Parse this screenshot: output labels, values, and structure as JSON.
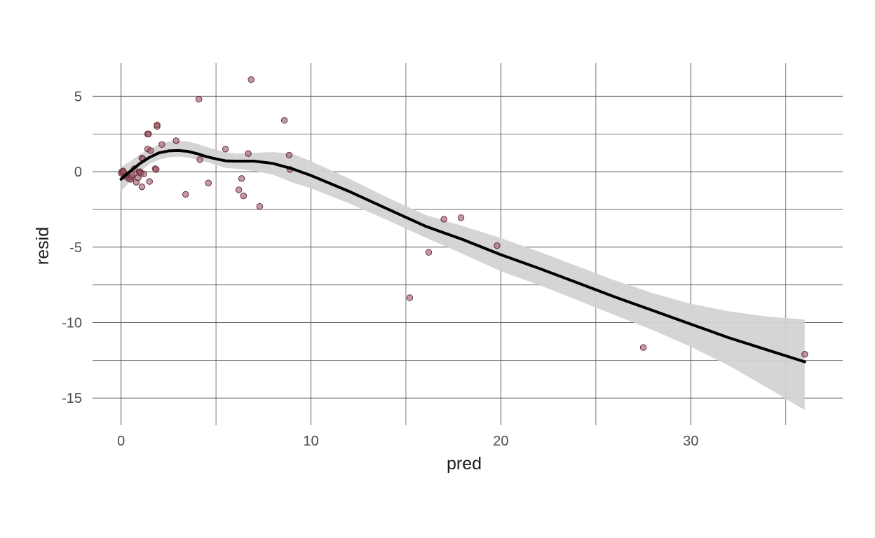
{
  "chart_data": {
    "type": "scatter",
    "title": "",
    "xlabel": "pred",
    "ylabel": "resid",
    "xlim": [
      -1.5,
      38
    ],
    "ylim": [
      -16.8,
      7.2
    ],
    "grid": "on",
    "legend": "none",
    "x_ticks": [
      0,
      10,
      20,
      30
    ],
    "x_tick_labels": [
      "0",
      "10",
      "20",
      "30"
    ],
    "x_minor_ticks": [
      5,
      15,
      25,
      35
    ],
    "y_ticks": [
      5,
      0,
      -5,
      -10,
      -15
    ],
    "y_tick_labels": [
      "5",
      "0",
      "-5",
      "-10",
      "-15"
    ],
    "y_minor_ticks": [
      2.5,
      -2.5,
      -7.5,
      -12.5
    ],
    "points": {
      "x": [
        0.02,
        0.05,
        0.1,
        0.15,
        0.2,
        0.3,
        0.4,
        0.5,
        0.55,
        0.6,
        0.7,
        0.8,
        0.9,
        0.95,
        1.0,
        1.05,
        1.1,
        1.1,
        1.15,
        1.2,
        1.4,
        1.4,
        1.45,
        1.5,
        1.55,
        1.8,
        1.85,
        1.9,
        1.9,
        2.15,
        2.9,
        3.4,
        4.1,
        4.15,
        4.6,
        5.5,
        6.2,
        6.35,
        6.45,
        6.7,
        6.85,
        7.3,
        8.6,
        8.85,
        8.9,
        15.2,
        16.2,
        17.0,
        17.9,
        19.8,
        27.5,
        36.0
      ],
      "y": [
        -0.1,
        0.0,
        0.05,
        -0.05,
        -0.3,
        -0.2,
        -0.45,
        -0.5,
        -0.35,
        -0.2,
        0.2,
        -0.7,
        -0.4,
        -0.05,
        0.0,
        -0.1,
        -1.0,
        0.9,
        0.85,
        -0.15,
        1.5,
        2.5,
        2.5,
        -0.65,
        1.4,
        0.2,
        0.15,
        3.0,
        3.1,
        1.8,
        2.05,
        -1.5,
        4.8,
        0.8,
        -0.75,
        1.5,
        -1.2,
        -0.45,
        -1.6,
        1.2,
        6.1,
        -2.3,
        3.4,
        1.1,
        0.15,
        -8.35,
        -5.35,
        -3.15,
        -3.05,
        -4.9,
        -11.65,
        -12.1
      ]
    },
    "smooth": {
      "x": [
        0.0,
        0.5,
        1.0,
        1.5,
        2.0,
        2.5,
        3.0,
        3.5,
        4.0,
        4.5,
        5.0,
        5.5,
        6.0,
        7.0,
        8.0,
        9.0,
        10.0,
        12.0,
        14.0,
        16.0,
        18.0,
        20.0,
        22.0,
        24.0,
        26.0,
        28.0,
        30.0,
        32.0,
        34.0,
        36.0
      ],
      "y": [
        -0.5,
        0.05,
        0.55,
        0.95,
        1.25,
        1.38,
        1.4,
        1.35,
        1.2,
        1.0,
        0.85,
        0.72,
        0.7,
        0.7,
        0.55,
        0.2,
        -0.25,
        -1.3,
        -2.45,
        -3.6,
        -4.5,
        -5.5,
        -6.4,
        -7.35,
        -8.3,
        -9.2,
        -10.1,
        -11.0,
        -11.8,
        -12.6
      ],
      "lower": [
        -1.3,
        -0.6,
        0.0,
        0.5,
        0.8,
        0.95,
        1.0,
        0.95,
        0.8,
        0.65,
        0.45,
        0.25,
        0.2,
        0.05,
        -0.2,
        -0.7,
        -1.1,
        -2.1,
        -3.2,
        -4.35,
        -5.45,
        -6.6,
        -7.5,
        -8.5,
        -9.5,
        -10.5,
        -11.6,
        -12.85,
        -14.3,
        -15.8
      ],
      "upper": [
        0.3,
        0.7,
        1.15,
        1.5,
        1.8,
        2.0,
        2.05,
        2.0,
        1.85,
        1.65,
        1.45,
        1.3,
        1.2,
        1.25,
        1.3,
        1.2,
        0.7,
        -0.45,
        -1.7,
        -2.85,
        -3.6,
        -4.4,
        -5.3,
        -6.25,
        -7.2,
        -8.05,
        -8.75,
        -9.25,
        -9.6,
        -9.8
      ]
    },
    "colors": {
      "point_fill": "#9b5a66",
      "point_stroke": "#6a2a36",
      "smooth_line": "#000000",
      "ribbon": "#d3d3d3"
    }
  }
}
